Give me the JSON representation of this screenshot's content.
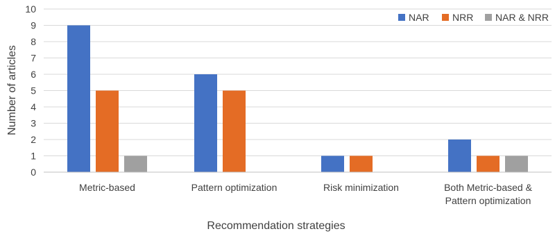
{
  "chart_data": {
    "type": "bar",
    "title": "",
    "xlabel": "Recommendation strategies",
    "ylabel": "Number of articles",
    "ylim": [
      0,
      10
    ],
    "yticks": [
      "0",
      "1",
      "2",
      "3",
      "4",
      "5",
      "6",
      "7",
      "8",
      "9",
      "10"
    ],
    "grid": true,
    "legend_position": "top-right",
    "categories": [
      [
        "Metric-based"
      ],
      [
        "Pattern optimization"
      ],
      [
        "Risk minimization"
      ],
      [
        "Both Metric-based &",
        "Pattern optimization"
      ]
    ],
    "series": [
      {
        "name": "NAR",
        "color": "#4472c4",
        "values": [
          9,
          6,
          1,
          2
        ]
      },
      {
        "name": "NRR",
        "color": "#e46c25",
        "values": [
          5,
          5,
          1,
          1
        ]
      },
      {
        "name": "NAR &  NRR",
        "color": "#a0a0a0",
        "values": [
          1,
          0,
          0,
          1
        ]
      }
    ]
  }
}
